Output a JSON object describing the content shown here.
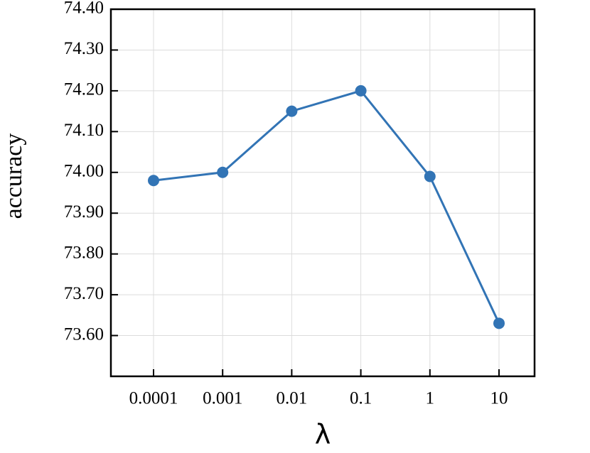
{
  "chart_data": {
    "type": "line",
    "x_label": "λ",
    "y_label": "accuracy",
    "categories": [
      "0.0001",
      "0.001",
      "0.01",
      "0.1",
      "1",
      "10"
    ],
    "series": [
      {
        "name": "accuracy",
        "color": "#3274b5",
        "values": [
          73.98,
          74.0,
          74.15,
          74.2,
          73.99,
          73.63
        ]
      }
    ],
    "ylim": [
      73.5,
      74.4
    ],
    "yticks": [
      {
        "value": 73.6,
        "label": "73.60"
      },
      {
        "value": 73.7,
        "label": "73.70"
      },
      {
        "value": 73.8,
        "label": "73.80"
      },
      {
        "value": 73.9,
        "label": "73.90"
      },
      {
        "value": 74.0,
        "label": "74.00"
      },
      {
        "value": 74.1,
        "label": "74.10"
      },
      {
        "value": 74.2,
        "label": "74.20"
      },
      {
        "value": 74.3,
        "label": "74.30"
      },
      {
        "value": 74.4,
        "label": "74.40"
      }
    ],
    "grid": true
  }
}
